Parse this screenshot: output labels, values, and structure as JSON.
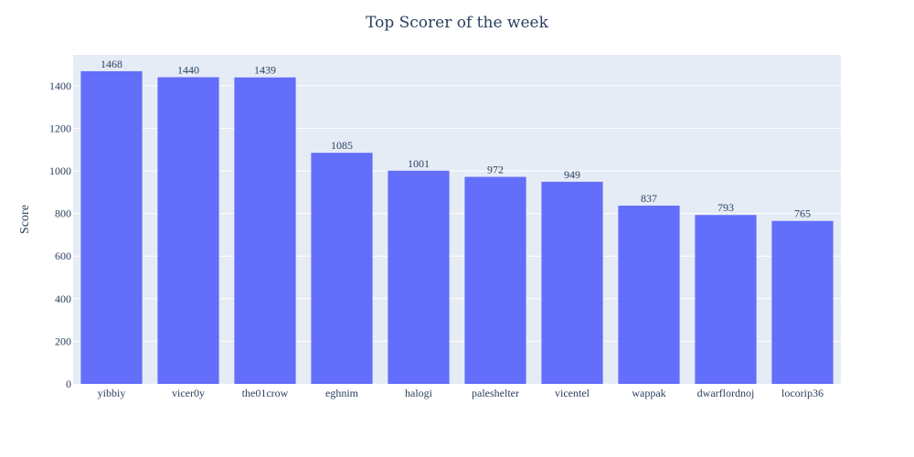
{
  "chart_data": {
    "type": "bar",
    "title": "Top Scorer of the week",
    "xlabel": "",
    "ylabel": "Score",
    "categories": [
      "yibbiy",
      "vicer0y",
      "the01crow",
      "eghnim",
      "halogi",
      "paleshelter",
      "vicentel",
      "wappak",
      "dwarflordnoj",
      "locorip36"
    ],
    "values": [
      1468,
      1440,
      1439,
      1085,
      1001,
      972,
      949,
      837,
      793,
      765
    ],
    "ylim": [
      0,
      1545
    ],
    "yticks": [
      0,
      200,
      400,
      600,
      800,
      1000,
      1200,
      1400
    ],
    "grid": true,
    "colors": {
      "bar": "#636efa",
      "plot_background": "#e5ecf6",
      "grid": "#ffffff",
      "text": "#2a3f5f"
    }
  }
}
